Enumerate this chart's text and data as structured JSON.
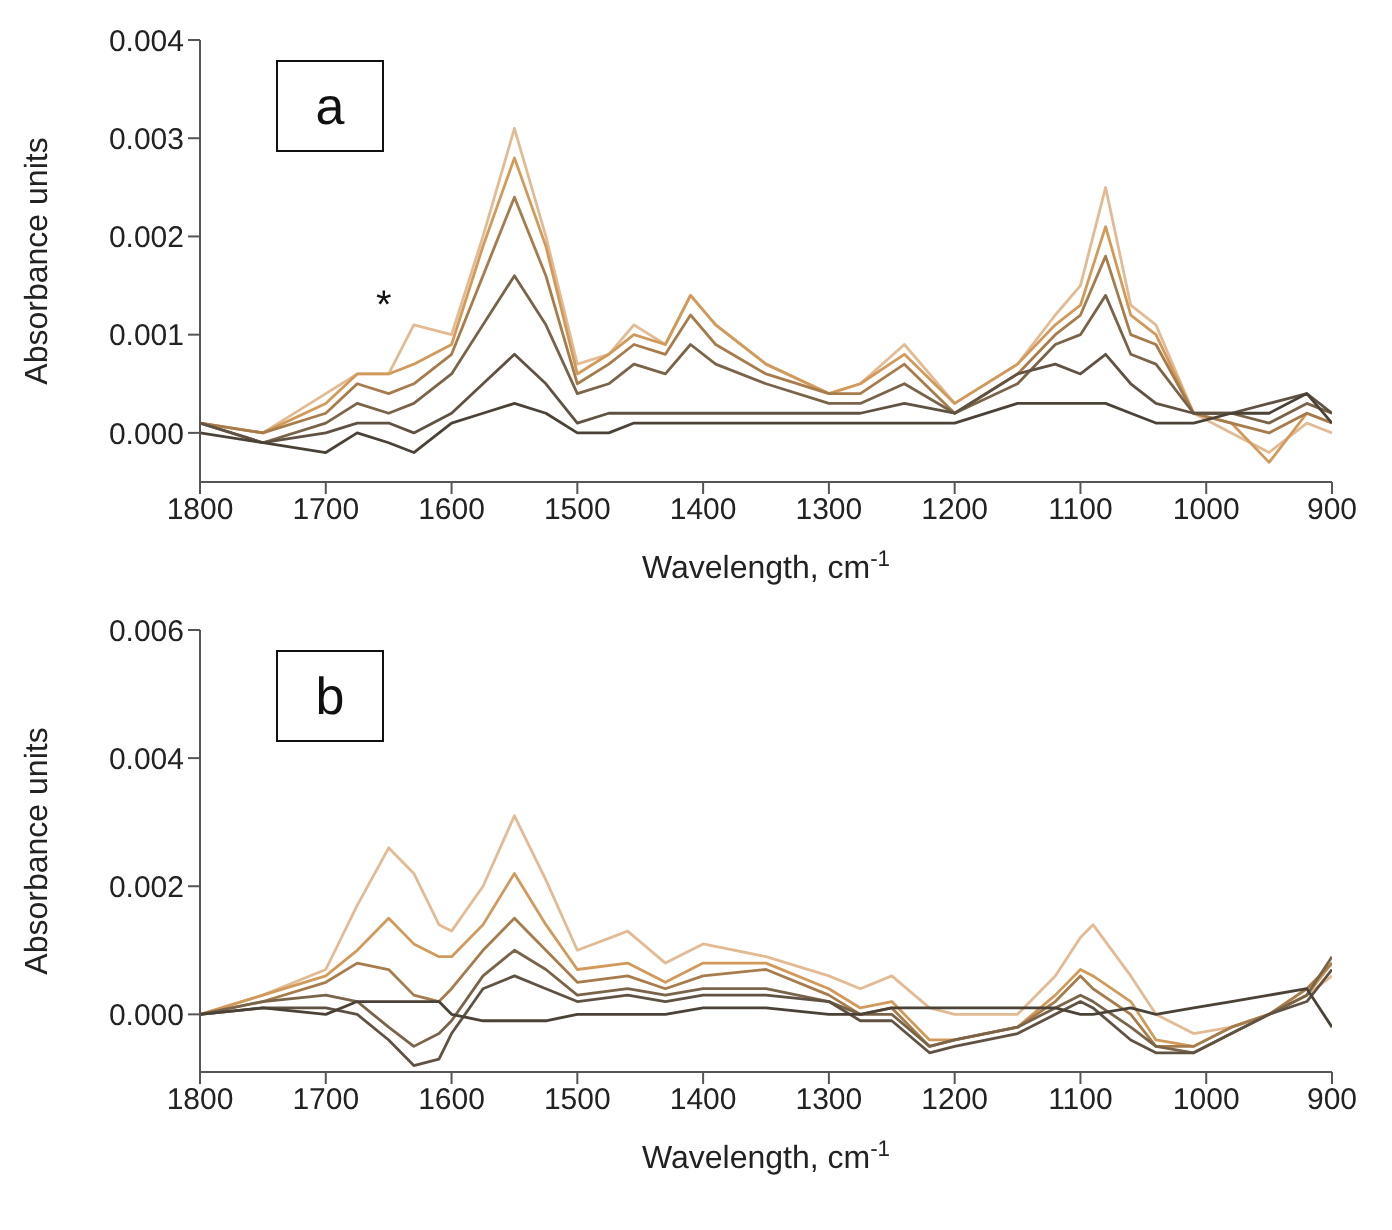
{
  "chart_data": [
    {
      "type": "line",
      "xlabel": "Wavelength, cm$^{-1}$",
      "ylabel": "Absorbance units",
      "annotations": [
        "a",
        "*"
      ],
      "xlim": [
        1800,
        900
      ],
      "xticks": [
        1800,
        1700,
        1600,
        1500,
        1400,
        1300,
        1200,
        1100,
        1000,
        900
      ],
      "ylim": [
        -0.0005,
        0.004
      ],
      "yticks": [
        {
          "value": 0,
          "label": "0.000"
        },
        {
          "value": 0.001,
          "label": "0.001"
        },
        {
          "value": 0.002,
          "label": "0.002"
        },
        {
          "value": 0.003,
          "label": "0.003"
        },
        {
          "value": 0.004,
          "label": "0.004"
        }
      ],
      "grid": false,
      "legend": false,
      "x": [
        1800,
        1750,
        1700,
        1675,
        1650,
        1630,
        1600,
        1575,
        1550,
        1525,
        1500,
        1475,
        1455,
        1430,
        1410,
        1390,
        1350,
        1300,
        1275,
        1240,
        1200,
        1150,
        1120,
        1100,
        1080,
        1060,
        1040,
        1010,
        980,
        950,
        920,
        900
      ],
      "series": [
        {
          "color": "#e2bb94",
          "values": [
            0.0001,
            0.0,
            0.0004,
            0.0006,
            0.0006,
            0.0011,
            0.001,
            0.002,
            0.0031,
            0.002,
            0.0007,
            0.0008,
            0.0011,
            0.0009,
            0.0014,
            0.0011,
            0.0007,
            0.0004,
            0.0005,
            0.0009,
            0.0003,
            0.0007,
            0.0012,
            0.0015,
            0.0025,
            0.0013,
            0.0011,
            0.0002,
            0.0,
            -0.0002,
            0.0001,
            0.0
          ]
        },
        {
          "color": "#d19a5a",
          "values": [
            0.0001,
            0.0,
            0.0003,
            0.0006,
            0.0006,
            0.0007,
            0.0009,
            0.0019,
            0.0028,
            0.0019,
            0.0006,
            0.0008,
            0.001,
            0.0009,
            0.0014,
            0.0011,
            0.0007,
            0.0004,
            0.0005,
            0.0008,
            0.0003,
            0.0007,
            0.0011,
            0.0013,
            0.0021,
            0.0012,
            0.001,
            0.0002,
            0.0001,
            -0.0003,
            0.0002,
            0.0001
          ]
        },
        {
          "color": "#a67c4c",
          "values": [
            0.0001,
            0.0,
            0.0002,
            0.0005,
            0.0004,
            0.0005,
            0.0008,
            0.0016,
            0.0024,
            0.0016,
            0.0005,
            0.0007,
            0.0009,
            0.0008,
            0.0012,
            0.0009,
            0.0006,
            0.0004,
            0.0004,
            0.0007,
            0.0002,
            0.0006,
            0.001,
            0.0012,
            0.0018,
            0.001,
            0.0009,
            0.0002,
            0.0001,
            0.0,
            0.0002,
            0.0001
          ]
        },
        {
          "color": "#7a6449",
          "values": [
            0.0001,
            -0.0001,
            0.0001,
            0.0003,
            0.0002,
            0.0003,
            0.0006,
            0.0011,
            0.0016,
            0.0011,
            0.0004,
            0.0005,
            0.0007,
            0.0006,
            0.0009,
            0.0007,
            0.0005,
            0.0003,
            0.0003,
            0.0005,
            0.0002,
            0.0005,
            0.0009,
            0.001,
            0.0014,
            0.0008,
            0.0007,
            0.0002,
            0.0002,
            0.0001,
            0.0003,
            0.0002
          ]
        },
        {
          "color": "#5f5242",
          "values": [
            0.0001,
            -0.0001,
            0.0,
            0.0001,
            0.0001,
            0.0,
            0.0002,
            0.0005,
            0.0008,
            0.0005,
            0.0001,
            0.0002,
            0.0002,
            0.0002,
            0.0002,
            0.0002,
            0.0002,
            0.0002,
            0.0002,
            0.0003,
            0.0002,
            0.0006,
            0.0007,
            0.0006,
            0.0008,
            0.0005,
            0.0003,
            0.0002,
            0.0002,
            0.0003,
            0.0004,
            0.0002
          ]
        },
        {
          "color": "#4a4236",
          "values": [
            0.0,
            -0.0001,
            -0.0002,
            0.0,
            -0.0001,
            -0.0002,
            0.0001,
            0.0002,
            0.0003,
            0.0002,
            0.0,
            0.0,
            0.0001,
            0.0001,
            0.0001,
            0.0001,
            0.0001,
            0.0001,
            0.0001,
            0.0001,
            0.0001,
            0.0003,
            0.0003,
            0.0003,
            0.0003,
            0.0002,
            0.0001,
            0.0001,
            0.0002,
            0.0002,
            0.0004,
            0.0001
          ]
        }
      ]
    },
    {
      "type": "line",
      "xlabel": "Wavelength, cm$^{-1}$",
      "ylabel": "Absorbance units",
      "annotations": [
        "b"
      ],
      "xlim": [
        1800,
        900
      ],
      "xticks": [
        1800,
        1700,
        1600,
        1500,
        1400,
        1300,
        1200,
        1100,
        1000,
        900
      ],
      "ylim": [
        -0.0009,
        0.006
      ],
      "yticks": [
        {
          "value": 0,
          "label": "0.000"
        },
        {
          "value": 0.002,
          "label": "0.002"
        },
        {
          "value": 0.004,
          "label": "0.004"
        },
        {
          "value": 0.006,
          "label": "0.006"
        }
      ],
      "grid": false,
      "legend": false,
      "x": [
        1800,
        1750,
        1700,
        1675,
        1650,
        1630,
        1610,
        1600,
        1575,
        1550,
        1525,
        1500,
        1460,
        1430,
        1400,
        1350,
        1300,
        1275,
        1250,
        1220,
        1200,
        1150,
        1120,
        1100,
        1090,
        1060,
        1040,
        1010,
        980,
        950,
        920,
        900
      ],
      "series": [
        {
          "color": "#e2bb94",
          "values": [
            0.0,
            0.0003,
            0.0007,
            0.0017,
            0.0026,
            0.0022,
            0.0014,
            0.0013,
            0.002,
            0.0031,
            0.0021,
            0.001,
            0.0013,
            0.0008,
            0.0011,
            0.0009,
            0.0006,
            0.0004,
            0.0006,
            0.0001,
            0.0,
            0.0,
            0.0006,
            0.0012,
            0.0014,
            0.0006,
            0.0,
            -0.0003,
            -0.0002,
            0.0,
            0.0003,
            0.0006
          ]
        },
        {
          "color": "#d19a5a",
          "values": [
            0.0,
            0.0003,
            0.0006,
            0.001,
            0.0015,
            0.0011,
            0.0009,
            0.0009,
            0.0014,
            0.0022,
            0.0014,
            0.0007,
            0.0008,
            0.0005,
            0.0008,
            0.0008,
            0.0004,
            0.0001,
            0.0002,
            -0.0004,
            -0.0004,
            -0.0002,
            0.0003,
            0.0007,
            0.0006,
            0.0002,
            -0.0004,
            -0.0005,
            -0.0002,
            0.0,
            0.0003,
            0.0008
          ]
        },
        {
          "color": "#a67c4c",
          "values": [
            0.0,
            0.0002,
            0.0005,
            0.0008,
            0.0007,
            0.0003,
            0.0002,
            0.0004,
            0.001,
            0.0015,
            0.001,
            0.0005,
            0.0006,
            0.0004,
            0.0006,
            0.0007,
            0.0003,
            0.0,
            0.0001,
            -0.0005,
            -0.0004,
            -0.0002,
            0.0002,
            0.0006,
            0.0004,
            0.0,
            -0.0005,
            -0.0005,
            -0.0002,
            0.0,
            0.0004,
            0.0008
          ]
        },
        {
          "color": "#7a6449",
          "values": [
            0.0,
            0.0002,
            0.0003,
            0.0002,
            -0.0002,
            -0.0005,
            -0.0003,
            -0.0001,
            0.0006,
            0.001,
            0.0007,
            0.0003,
            0.0004,
            0.0003,
            0.0004,
            0.0004,
            0.0002,
            0.0,
            0.0,
            -0.0005,
            -0.0004,
            -0.0002,
            0.0001,
            0.0003,
            0.0002,
            -0.0002,
            -0.0005,
            -0.0006,
            -0.0003,
            0.0,
            0.0003,
            0.0009
          ]
        },
        {
          "color": "#5f5242",
          "values": [
            0.0,
            0.0001,
            0.0001,
            0.0,
            -0.0004,
            -0.0008,
            -0.0007,
            -0.0003,
            0.0004,
            0.0006,
            0.0004,
            0.0002,
            0.0003,
            0.0002,
            0.0003,
            0.0003,
            0.0002,
            -0.0001,
            -0.0001,
            -0.0006,
            -0.0005,
            -0.0003,
            0.0,
            0.0002,
            0.0001,
            -0.0004,
            -0.0006,
            -0.0006,
            -0.0003,
            0.0,
            0.0002,
            0.0007
          ]
        },
        {
          "color": "#4a4236",
          "values": [
            0.0,
            0.0001,
            0.0,
            0.0002,
            0.0002,
            0.0002,
            0.0002,
            0.0,
            -0.0001,
            -0.0001,
            -0.0001,
            0.0,
            0.0,
            0.0,
            0.0001,
            0.0001,
            0.0,
            0.0,
            0.0001,
            0.0001,
            0.0001,
            0.0001,
            0.0001,
            0.0,
            0.0,
            0.0001,
            0.0,
            0.0001,
            0.0002,
            0.0003,
            0.0004,
            -0.0002
          ]
        }
      ]
    }
  ]
}
